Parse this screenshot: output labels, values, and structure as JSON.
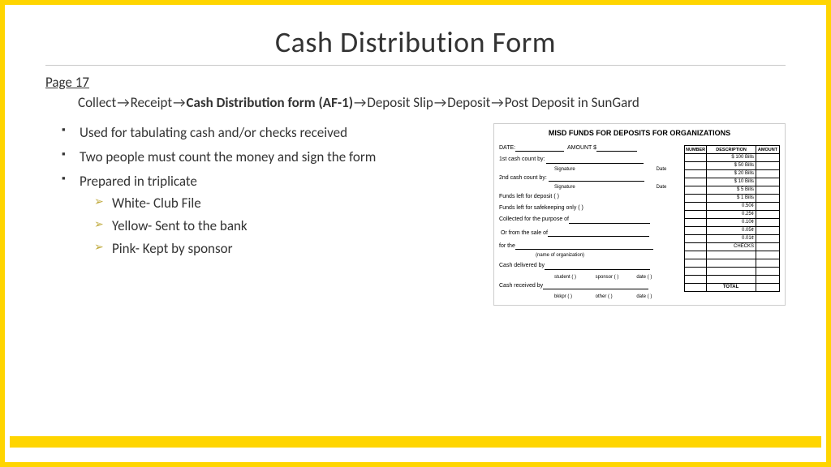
{
  "colors": {
    "border": "#ffd500",
    "rule": "#c9c9c9",
    "text": "#333333",
    "sub_bullet": "#bfa93a",
    "gold_bar": "#ffd500"
  },
  "title": "Cash Distribution Form",
  "page_label": "Page 17",
  "breadcrumb": {
    "steps": [
      "Collect",
      "Receipt",
      "Cash Distribution form (AF-1)",
      "Deposit Slip",
      "Deposit",
      "Post Deposit in SunGard"
    ],
    "bold_index": 2,
    "arrow": "→"
  },
  "bullets": [
    "Used for tabulating cash and/or checks received",
    "Two people must count the money and sign the form",
    "Prepared in triplicate"
  ],
  "sub_bullets": [
    "White- Club File",
    "Yellow- Sent to the bank",
    "Pink- Kept by sponsor"
  ],
  "form": {
    "title": "MISD FUNDS FOR DEPOSITS FOR ORGANIZATIONS",
    "date_label": "DATE:",
    "amount_label": "AMOUNT $",
    "count1": "1st cash count by:",
    "count2": "2nd cash count by:",
    "sig_label": "Signature",
    "date_small": "Date",
    "funds_deposit": "Funds left for deposit ( )",
    "funds_safekeep": "Funds left for safekeeping only ( )",
    "collected": "Collected for the purpose of",
    "or_sale": "Or from the sale of",
    "for_the": "for the",
    "name_org": "(name of organization)",
    "delivered": "Cash delivered by",
    "delivered_opts": [
      "student ( )",
      "sponsor ( )",
      "date ( )"
    ],
    "received": "Cash received by",
    "received_opts": [
      "bkkpr ( )",
      "other ( )",
      "date ( )"
    ],
    "table": {
      "headers": [
        "NUMBER",
        "DESCRIPTION",
        "AMOUNT"
      ],
      "rows": [
        "$ 100 Bills",
        "$  50 Bills",
        "$  20 Bills",
        "$  10 Bills",
        "$   5 Bills",
        "$   1 Bills",
        "0.50¢",
        "0.25¢",
        "0.10¢",
        "0.05¢",
        "0.01¢",
        "CHECKS"
      ],
      "blank_rows": 4,
      "total": "TOTAL"
    }
  }
}
